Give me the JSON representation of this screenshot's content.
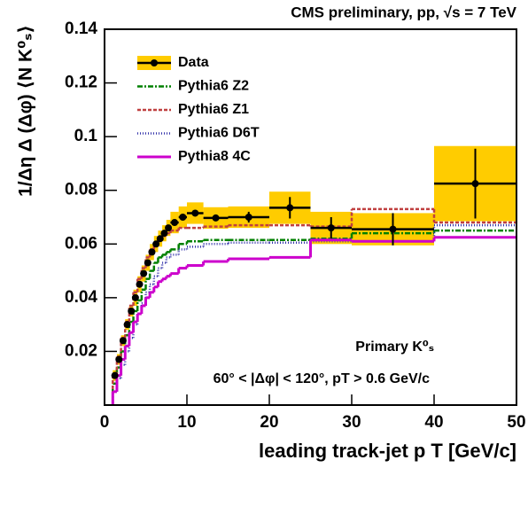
{
  "chart_data": {
    "type": "histogram",
    "title": "CMS preliminary, pp, √s = 7 TeV",
    "x_label": "leading track-jet p T [GeV/c]",
    "y_label": "1/Δη Δ (Δφ) ⟨N K⁰ₛ⟩",
    "annotations": [
      "Primary K⁰ₛ",
      "60° < |Δφ| < 120°, pT > 0.6 GeV/c"
    ],
    "bins": [
      1,
      1.5,
      2,
      2.5,
      3,
      3.5,
      4,
      4.5,
      5,
      5.5,
      6,
      6.5,
      7,
      7.5,
      8,
      9,
      10,
      12,
      15,
      20,
      25,
      30,
      40,
      50
    ],
    "data": {
      "name": "Data",
      "color": "#000000",
      "band_color": "#ffcc00",
      "x": [
        1.25,
        1.75,
        2.25,
        2.75,
        3.25,
        3.75,
        4.25,
        4.75,
        5.25,
        5.75,
        6.25,
        6.75,
        7.25,
        7.75,
        8.5,
        9.5,
        11,
        13.5,
        17.5,
        22.5,
        27.5,
        35,
        45
      ],
      "values": [
        0.011,
        0.017,
        0.024,
        0.03,
        0.035,
        0.04,
        0.045,
        0.049,
        0.053,
        0.057,
        0.06,
        0.062,
        0.064,
        0.066,
        0.068,
        0.07,
        0.0715,
        0.0697,
        0.07,
        0.0735,
        0.066,
        0.0655,
        0.0825
      ],
      "errors": [
        0.001,
        0.001,
        0.001,
        0.001,
        0.001,
        0.001,
        0.001,
        0.001,
        0.001,
        0.001,
        0.001,
        0.001,
        0.001,
        0.001,
        0.001,
        0.001,
        0.001,
        0.001,
        0.002,
        0.004,
        0.004,
        0.006,
        0.013
      ],
      "sys": [
        0.002,
        0.002,
        0.002,
        0.002,
        0.002,
        0.003,
        0.003,
        0.003,
        0.003,
        0.003,
        0.003,
        0.003,
        0.003,
        0.003,
        0.004,
        0.004,
        0.004,
        0.004,
        0.004,
        0.006,
        0.006,
        0.006,
        0.014
      ]
    },
    "series": [
      {
        "name": "Pythia6 Z2",
        "color": "#008000",
        "style": "dashdot",
        "values": [
          0.008,
          0.014,
          0.02,
          0.026,
          0.031,
          0.035,
          0.039,
          0.043,
          0.047,
          0.05,
          0.053,
          0.055,
          0.056,
          0.057,
          0.058,
          0.06,
          0.061,
          0.0615,
          0.0615,
          0.0615,
          0.062,
          0.064,
          0.065
        ]
      },
      {
        "name": "Pythia6 Z1",
        "color": "#c04040",
        "style": "dashed",
        "values": [
          0.011,
          0.018,
          0.025,
          0.031,
          0.037,
          0.042,
          0.047,
          0.051,
          0.055,
          0.058,
          0.06,
          0.062,
          0.063,
          0.064,
          0.065,
          0.066,
          0.066,
          0.0665,
          0.067,
          0.067,
          0.0665,
          0.073,
          0.068
        ]
      },
      {
        "name": "Pythia6 D6T",
        "color": "#3333aa",
        "style": "dotted",
        "values": [
          0.005,
          0.01,
          0.015,
          0.02,
          0.025,
          0.03,
          0.034,
          0.038,
          0.042,
          0.045,
          0.048,
          0.051,
          0.053,
          0.055,
          0.056,
          0.058,
          0.059,
          0.06,
          0.0605,
          0.0605,
          0.061,
          0.061,
          0.067
        ]
      },
      {
        "name": "Pythia8 4C",
        "color": "#cc00cc",
        "style": "solid",
        "values": [
          0.005,
          0.011,
          0.017,
          0.022,
          0.027,
          0.031,
          0.034,
          0.037,
          0.04,
          0.042,
          0.044,
          0.046,
          0.047,
          0.048,
          0.049,
          0.051,
          0.052,
          0.0535,
          0.0545,
          0.055,
          0.0615,
          0.061,
          0.0625
        ]
      }
    ],
    "xlim": [
      0,
      50
    ],
    "ylim": [
      0,
      0.14
    ],
    "xticks": [
      0,
      10,
      20,
      30,
      40,
      50
    ],
    "yticks": [
      0.02,
      0.04,
      0.06,
      0.08,
      0.1,
      0.12,
      0.14
    ],
    "legend": "upper left"
  }
}
